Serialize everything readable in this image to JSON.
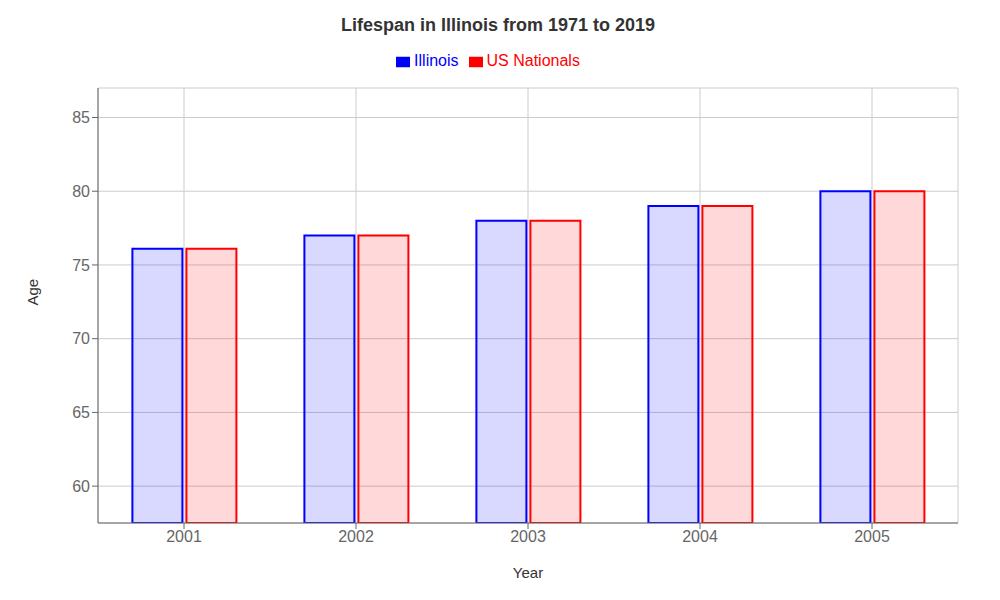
{
  "chart_data": {
    "type": "bar",
    "title": "Lifespan in Illinois from 1971 to 2019",
    "x_label": "Year",
    "y_label": "Age",
    "categories": [
      "2001",
      "2002",
      "2003",
      "2004",
      "2005"
    ],
    "series": [
      {
        "name": "Illinois",
        "color": "#0000ff",
        "values": [
          76.1,
          77.0,
          78.0,
          79.0,
          80.0
        ]
      },
      {
        "name": "US Nationals",
        "color": "#ff0000",
        "values": [
          76.1,
          77.0,
          78.0,
          79.0,
          80.0
        ]
      }
    ],
    "ylim": [
      57.5,
      87
    ],
    "yticks": [
      60,
      65,
      70,
      75,
      80,
      85
    ],
    "grid": true,
    "legend": "top"
  }
}
